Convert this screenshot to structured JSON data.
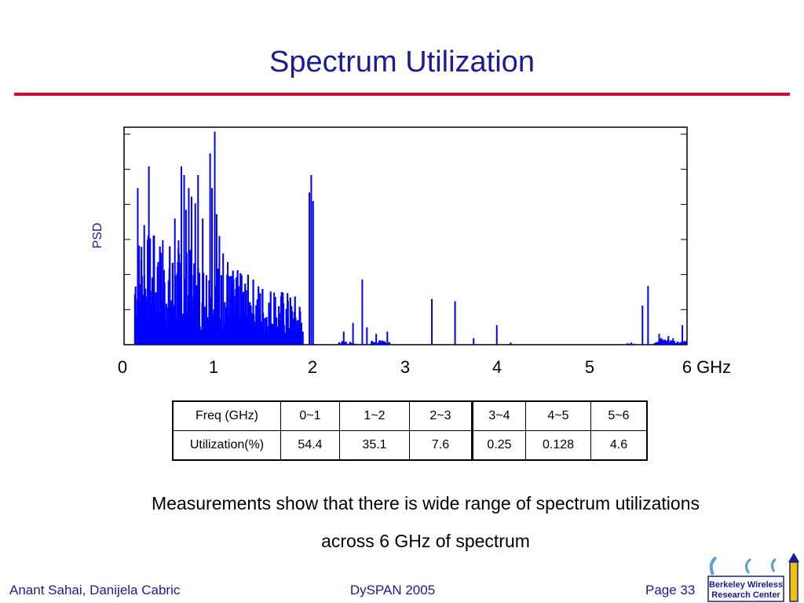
{
  "slide": {
    "title": "Spectrum Utilization",
    "caption_line1": "Measurements show that there is wide range of spectrum utilizations",
    "caption_line2": "across 6 GHz of spectrum"
  },
  "footer": {
    "authors": "Anant Sahai, Danijela Cabric",
    "conference": "DySPAN 2005",
    "page": "Page 33"
  },
  "logo": {
    "line1": "Berkeley Wireless",
    "line2": "Research Center"
  },
  "chart_data": {
    "type": "bar",
    "ylabel": "PSD",
    "xlabel": "",
    "x_tick_labels": [
      "0",
      "1",
      "2",
      "3",
      "4",
      "5",
      "6 GHz"
    ],
    "x_ticks": [
      0,
      1,
      2,
      3,
      4,
      5,
      6
    ],
    "xlim": [
      0,
      6
    ],
    "ylim": [
      0,
      1
    ],
    "grid": false,
    "series": [
      {
        "color": "#0000ff",
        "spikes": [
          [
            0.08,
            0.72
          ],
          [
            0.12,
            0.45
          ],
          [
            0.15,
            0.55
          ],
          [
            0.2,
            0.82
          ],
          [
            0.25,
            0.5
          ],
          [
            0.3,
            0.38
          ],
          [
            0.35,
            0.48
          ],
          [
            0.42,
            0.35
          ],
          [
            0.48,
            0.58
          ],
          [
            0.52,
            0.48
          ],
          [
            0.55,
            0.82
          ],
          [
            0.58,
            0.78
          ],
          [
            0.6,
            0.62
          ],
          [
            0.63,
            0.72
          ],
          [
            0.66,
            0.68
          ],
          [
            0.7,
            0.65
          ],
          [
            0.73,
            0.78
          ],
          [
            0.78,
            0.58
          ],
          [
            0.82,
            0.32
          ],
          [
            0.86,
            0.88
          ],
          [
            0.88,
            0.72
          ],
          [
            0.91,
            0.98
          ],
          [
            0.93,
            0.6
          ],
          [
            0.96,
            0.5
          ],
          [
            1.0,
            0.42
          ],
          [
            1.05,
            0.38
          ],
          [
            1.1,
            0.28
          ],
          [
            1.15,
            0.2
          ],
          [
            1.2,
            0.32
          ],
          [
            1.25,
            0.25
          ],
          [
            1.3,
            0.18
          ],
          [
            1.4,
            0.22
          ],
          [
            1.5,
            0.15
          ],
          [
            1.55,
            0.24
          ],
          [
            1.6,
            0.12
          ],
          [
            1.7,
            0.2
          ],
          [
            1.78,
            0.1
          ],
          [
            1.86,
            0.06
          ],
          [
            1.93,
            0.7
          ],
          [
            1.95,
            0.78
          ],
          [
            1.97,
            0.66
          ],
          [
            2.3,
            0.06
          ],
          [
            2.4,
            0.1
          ],
          [
            2.5,
            0.3
          ],
          [
            2.55,
            0.08
          ],
          [
            2.65,
            0.05
          ],
          [
            2.77,
            0.06
          ],
          [
            3.25,
            0.21
          ],
          [
            3.5,
            0.2
          ],
          [
            3.7,
            0.03
          ],
          [
            3.95,
            0.09
          ],
          [
            4.1,
            0.01
          ],
          [
            5.4,
            0.01
          ],
          [
            5.52,
            0.18
          ],
          [
            5.58,
            0.27
          ],
          [
            5.7,
            0.05
          ],
          [
            5.8,
            0.04
          ],
          [
            5.85,
            0.03
          ],
          [
            5.95,
            0.09
          ]
        ],
        "dense_regions": [
          {
            "range": [
              0.05,
              1.85
            ],
            "max": 0.55
          },
          {
            "range": [
              2.25,
              2.45
            ],
            "max": 0.02
          },
          {
            "range": [
              2.6,
              2.8
            ],
            "max": 0.03
          },
          {
            "range": [
              5.35,
              5.45
            ],
            "max": 0.01
          },
          {
            "range": [
              5.65,
              6.0
            ],
            "max": 0.04
          }
        ]
      }
    ]
  },
  "table": {
    "header_label": "Freq (GHz)",
    "row_label": "Utilization(%)",
    "columns": [
      "0~1",
      "1~2",
      "2~3",
      "3~4",
      "4~5",
      "5~6"
    ],
    "values": [
      "54.4",
      "35.1",
      "7.6",
      "0.25",
      "0.128",
      "4.6"
    ]
  }
}
